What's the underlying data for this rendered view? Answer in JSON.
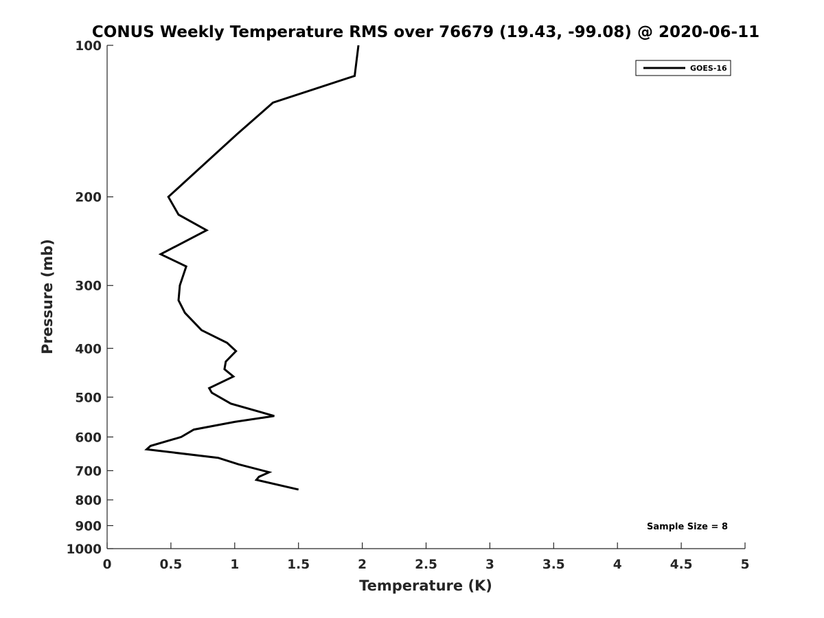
{
  "chart_data": {
    "type": "line",
    "title": "CONUS Weekly Temperature RMS over 76679 (19.43, -99.08) @ 2020-06-11",
    "xlabel": "Temperature (K)",
    "ylabel": "Pressure (mb)",
    "xlim": [
      0,
      5
    ],
    "ylim": [
      1000,
      100
    ],
    "y_scale": "log",
    "y_inverted": true,
    "x_ticks": [
      "0",
      "0.5",
      "1",
      "1.5",
      "2",
      "2.5",
      "3",
      "3.5",
      "4",
      "4.5",
      "5"
    ],
    "x_tick_values": [
      0,
      0.5,
      1,
      1.5,
      2,
      2.5,
      3,
      3.5,
      4,
      4.5,
      5
    ],
    "y_ticks": [
      "100",
      "200",
      "300",
      "400",
      "500",
      "600",
      "700",
      "800",
      "900",
      "1000"
    ],
    "y_tick_values": [
      100,
      200,
      300,
      400,
      500,
      600,
      700,
      800,
      900,
      1000
    ],
    "grid": false,
    "legend_position": "top-right",
    "line_color": "#000000",
    "series": [
      {
        "name": "GOES-16",
        "x": [
          1.97,
          1.94,
          1.3,
          1.02,
          0.48,
          0.56,
          0.78,
          0.42,
          0.62,
          0.57,
          0.56,
          0.61,
          0.74,
          0.94,
          1.01,
          0.93,
          0.92,
          0.99,
          0.8,
          0.82,
          0.97,
          1.31,
          1.0,
          0.68,
          0.58,
          0.34,
          0.31,
          0.87,
          1.03,
          1.27,
          1.19,
          1.17,
          1.5
        ],
        "y": [
          100,
          115,
          130,
          150,
          200,
          217,
          233,
          260,
          275,
          300,
          321,
          340,
          368,
          390,
          405,
          425,
          440,
          455,
          480,
          490,
          515,
          545,
          560,
          580,
          600,
          625,
          635,
          660,
          680,
          705,
          720,
          730,
          763
        ]
      }
    ],
    "annotation": "Sample Size = 8"
  }
}
